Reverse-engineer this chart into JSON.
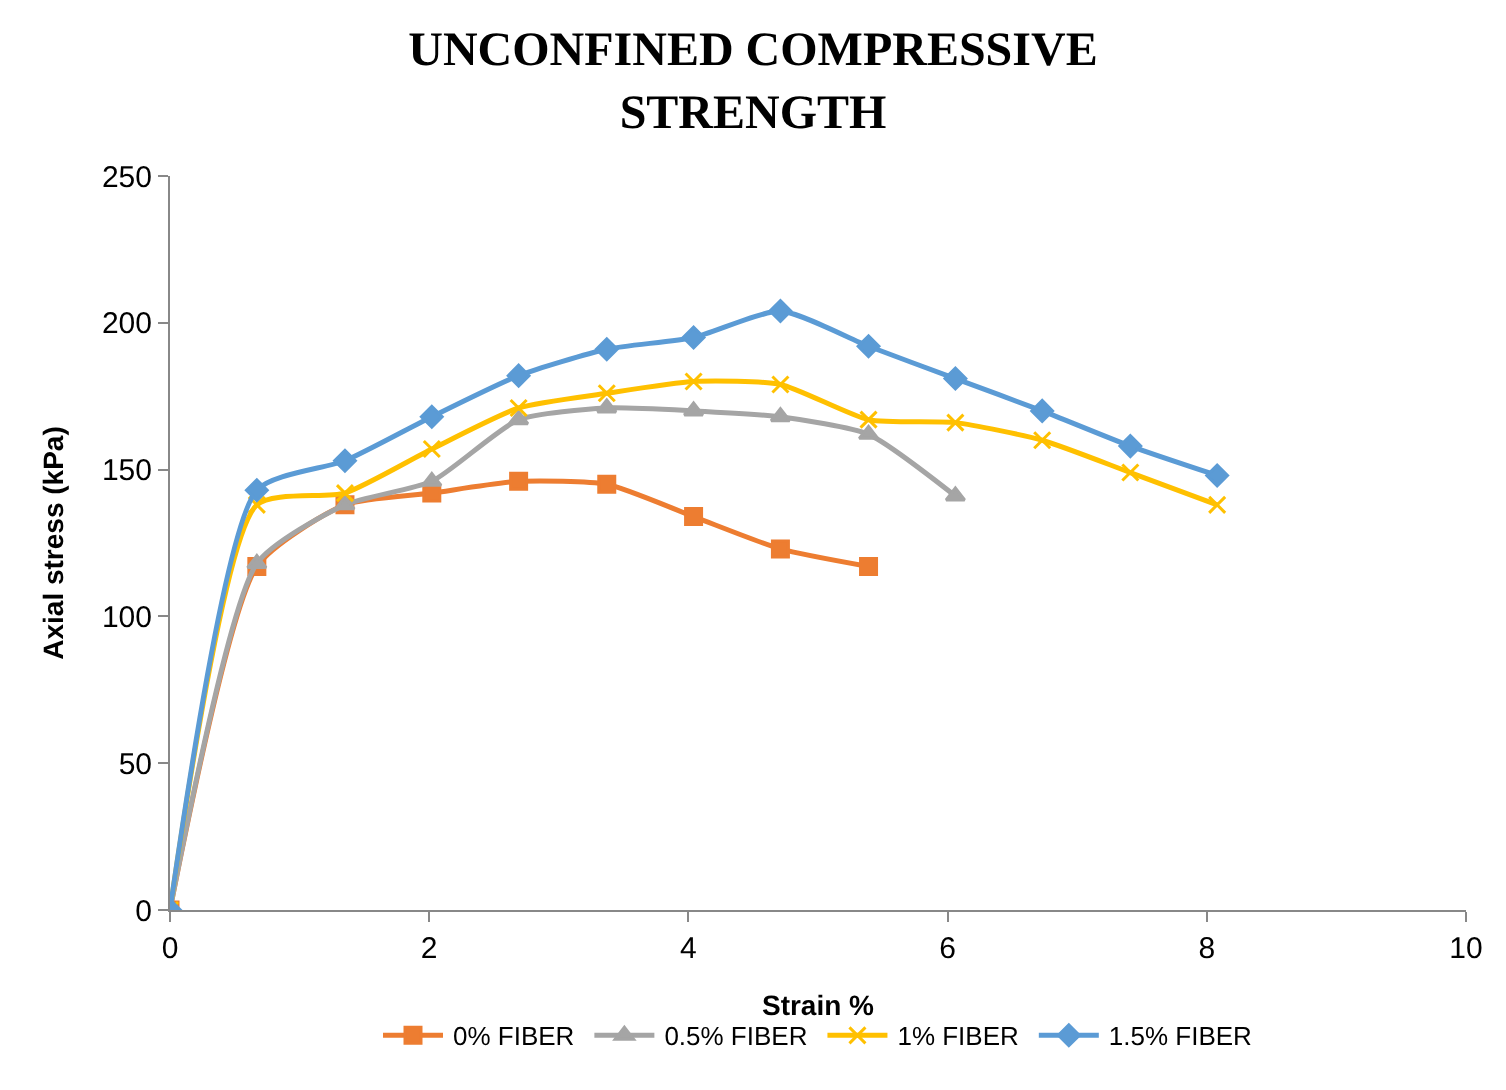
{
  "chart_data": {
    "type": "line",
    "title": "UNCONFINED COMPRESSIVE STRENGTH",
    "xlabel": "Strain %",
    "ylabel": "Axial stress (kPa)",
    "xlim": [
      0,
      10
    ],
    "xticks": [
      0,
      2,
      4,
      6,
      8,
      10
    ],
    "ylim": [
      0,
      250
    ],
    "yticks": [
      0,
      50,
      100,
      150,
      200,
      250
    ],
    "legend": "bottom",
    "line_style": "solid",
    "series": [
      {
        "name": "0% FIBER",
        "color": "#ed7d31",
        "marker": "square",
        "x": [
          0,
          0.67,
          1.35,
          2.02,
          2.69,
          3.37,
          4.04,
          4.71,
          5.39
        ],
        "values": [
          0,
          117,
          138,
          142,
          146,
          145,
          134,
          123,
          117
        ]
      },
      {
        "name": "0.5% FIBER",
        "color": "#a5a5a5",
        "marker": "triangle",
        "x": [
          0,
          0.67,
          1.35,
          2.02,
          2.69,
          3.37,
          4.04,
          4.71,
          5.39,
          6.06
        ],
        "values": [
          0,
          118,
          138,
          146,
          167,
          171,
          170,
          168,
          162,
          141
        ]
      },
      {
        "name": "1% FIBER",
        "color": "#ffc000",
        "marker": "cross",
        "x": [
          0,
          0.67,
          1.35,
          2.02,
          2.69,
          3.37,
          4.04,
          4.71,
          5.39,
          6.06,
          6.73,
          7.41,
          8.08
        ],
        "values": [
          0,
          138,
          142,
          157,
          171,
          176,
          180,
          179,
          167,
          166,
          160,
          149,
          138
        ]
      },
      {
        "name": "1.5% FIBER",
        "color": "#5b9bd5",
        "marker": "diamond",
        "x": [
          0,
          0.67,
          1.35,
          2.02,
          2.69,
          3.37,
          4.04,
          4.71,
          5.39,
          6.06,
          6.73,
          7.41,
          8.08
        ],
        "values": [
          0,
          143,
          153,
          168,
          182,
          191,
          195,
          204,
          192,
          181,
          170,
          158,
          148
        ]
      }
    ]
  }
}
